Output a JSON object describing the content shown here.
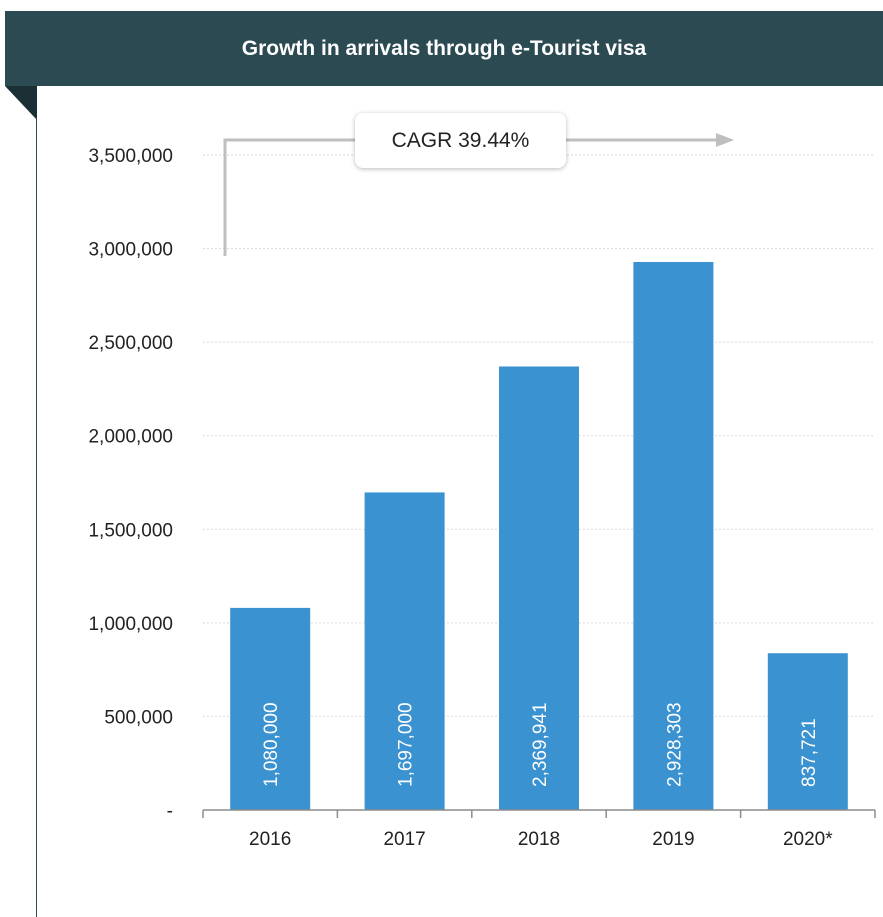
{
  "header": {
    "title": "Growth in arrivals through e-Tourist visa"
  },
  "annotation": {
    "label": "CAGR 39.44%"
  },
  "colors": {
    "header_bg": "#2b4a52",
    "bar": "#3a92d0",
    "arrow": "#bfbfbf",
    "gridline": "#d9d9d9"
  },
  "chart_data": {
    "type": "bar",
    "title": "Growth in arrivals through e-Tourist visa",
    "categories": [
      "2016",
      "2017",
      "2018",
      "2019",
      "2020*"
    ],
    "values": [
      1080000,
      1697000,
      2369941,
      2928303,
      837721
    ],
    "value_labels": [
      "1,080,000",
      "1,697,000",
      "2,369,941",
      "2,928,303",
      "837,721"
    ],
    "ylim": [
      0,
      3500000
    ],
    "yticks": [
      0,
      500000,
      1000000,
      1500000,
      2000000,
      2500000,
      3000000,
      3500000
    ],
    "ytick_labels": [
      "-",
      "500,000",
      "1,000,000",
      "1,500,000",
      "2,000,000",
      "2,500,000",
      "3,000,000",
      "3,500,000"
    ],
    "grid": true,
    "xlabel": "",
    "ylabel": ""
  }
}
